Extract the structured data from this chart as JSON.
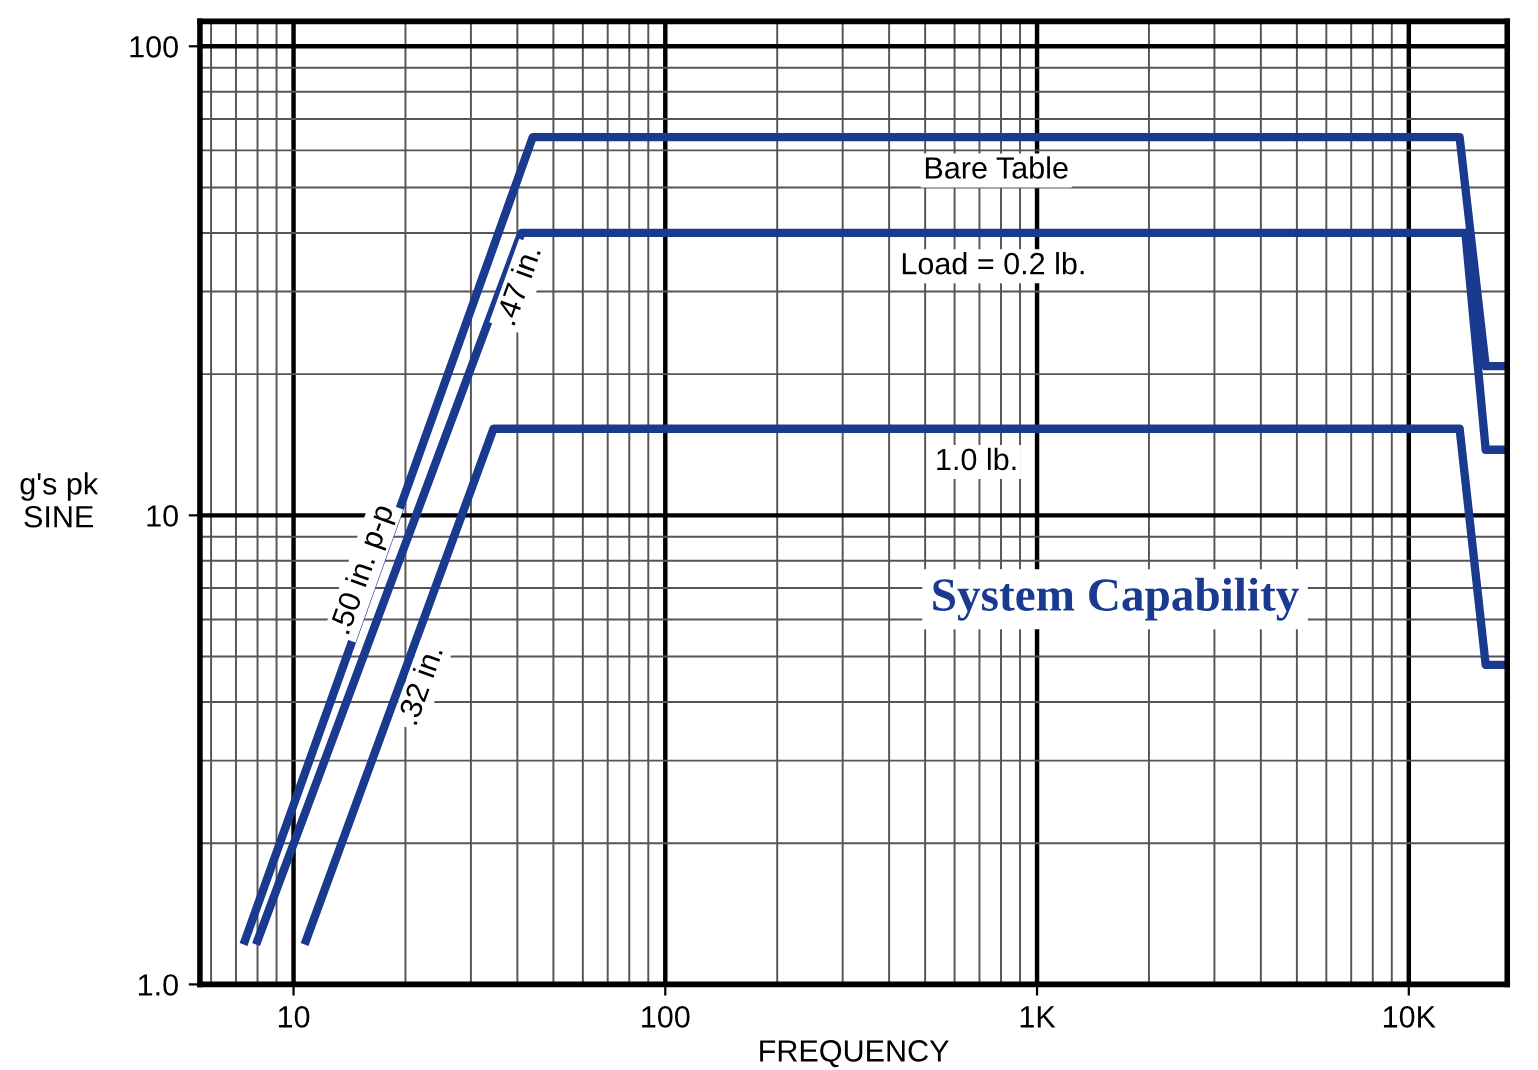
{
  "chart_data": {
    "type": "line",
    "xlabel": "FREQUENCY",
    "ylabel": "g's pk\nSINE",
    "log": "xy",
    "grid": true,
    "marker": "none",
    "line_style": "solid",
    "legend": false,
    "xlim": [
      5.6,
      18400
    ],
    "ylim": [
      1,
      113
    ],
    "xticks": [
      10,
      100,
      {
        "value": 1000,
        "label": "1K"
      },
      {
        "value": 10000,
        "label": "10K"
      }
    ],
    "yticks": [
      {
        "value": 1,
        "label": "1.0"
      },
      10,
      100
    ],
    "series": [
      {
        "name": "Bare Table",
        "color": "#1a3a8f",
        "x": [
          7.4,
          44,
          13700,
          16100,
          18400
        ],
        "values": [
          1.24,
          64,
          64,
          20.8,
          20.8
        ]
      },
      {
        "name": "Load = 0.2 lb.",
        "color": "#1a3a8f",
        "x": [
          8.0,
          41,
          14200,
          16100,
          18400
        ],
        "values": [
          1.24,
          40,
          40,
          13.8,
          13.8
        ]
      },
      {
        "name": "1.0 lb.",
        "color": "#1a3a8f",
        "x": [
          10.8,
          34.5,
          13700,
          16100,
          18400
        ],
        "values": [
          1.24,
          15.3,
          15.3,
          4.8,
          4.8
        ]
      }
    ],
    "annotations": [
      ".50 in. p-p",
      ".47 in.",
      ".32 in.",
      "System Capability"
    ]
  }
}
